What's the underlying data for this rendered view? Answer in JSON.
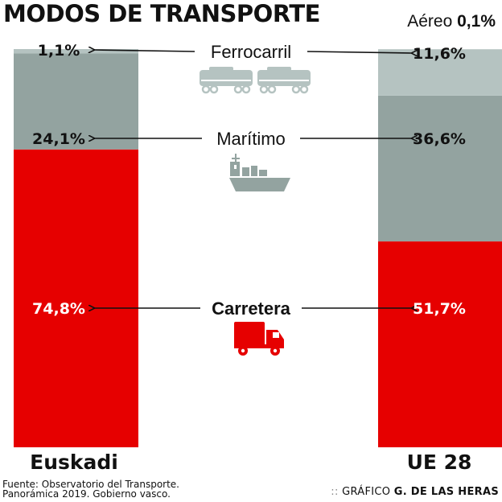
{
  "chart_data": {
    "type": "bar",
    "stacked": true,
    "title": "MODOS DE TRANSPORTE",
    "unit": "%",
    "categories": [
      "Euskadi",
      "UE 28"
    ],
    "series": [
      {
        "name": "Carretera",
        "values": [
          74.8,
          51.7
        ],
        "labels": [
          "74,8%",
          "51,7%"
        ],
        "color": "#e60000",
        "label_color": "#ffffff",
        "icon": "truck-icon"
      },
      {
        "name": "Marítimo",
        "values": [
          24.1,
          36.6
        ],
        "labels": [
          "24,1%",
          "36,6%"
        ],
        "color": "#93a3a0",
        "label_color": "#111111",
        "icon": "ship-icon"
      },
      {
        "name": "Ferrocarril",
        "values": [
          1.1,
          11.6
        ],
        "labels": [
          "1,1%",
          "11,6%"
        ],
        "color": "#b5c3c1",
        "label_color": "#111111",
        "icon": "train-icon"
      },
      {
        "name": "Aéreo",
        "values": [
          0,
          0.1
        ],
        "labels": [
          "",
          "0,1%"
        ],
        "color": "#d3dcdb"
      }
    ],
    "ylim": [
      0,
      100
    ],
    "grid": false,
    "legend": "center"
  },
  "header": {
    "title": "MODOS DE TRANSPORTE",
    "aereo_label": "Aéreo",
    "aereo_value": "0,1%"
  },
  "footer": {
    "source_line1": "Fuente: Observatorio del Transporte.",
    "source_line2": "Panorámica 2019. Gobierno vasco.",
    "credit_prefix": "::",
    "credit_label": "GRÁFICO",
    "credit_author": "G. DE LAS HERAS"
  }
}
